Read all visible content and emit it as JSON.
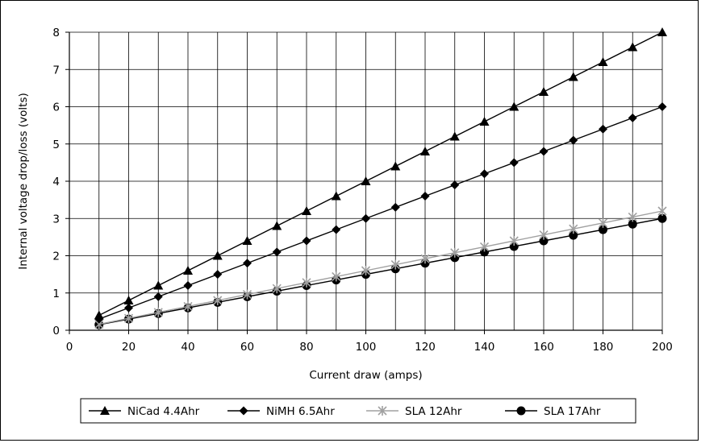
{
  "chart_data": {
    "type": "line",
    "title": "",
    "xlabel": "Current draw (amps)",
    "ylabel": "Internal voltage drop/loss (volts)",
    "xlim": [
      0,
      200
    ],
    "ylim": [
      0,
      8
    ],
    "xticks": [
      0,
      20,
      40,
      60,
      80,
      100,
      120,
      140,
      160,
      180,
      200
    ],
    "yticks": [
      0,
      1,
      2,
      3,
      4,
      5,
      6,
      7,
      8
    ],
    "grid": true,
    "legend_position": "bottom",
    "x": [
      10,
      20,
      30,
      40,
      50,
      60,
      70,
      80,
      90,
      100,
      110,
      120,
      130,
      140,
      150,
      160,
      170,
      180,
      190,
      200
    ],
    "series": [
      {
        "name": "NiCad 4.4Ahr",
        "marker": "triangle",
        "color": "#000000",
        "values": [
          0.4,
          0.8,
          1.2,
          1.6,
          2.0,
          2.4,
          2.8,
          3.2,
          3.6,
          4.0,
          4.4,
          4.8,
          5.2,
          5.6,
          6.0,
          6.4,
          6.8,
          7.2,
          7.6,
          8.0
        ]
      },
      {
        "name": "NiMH 6.5Ahr",
        "marker": "diamond",
        "color": "#000000",
        "values": [
          0.3,
          0.6,
          0.9,
          1.2,
          1.5,
          1.8,
          2.1,
          2.4,
          2.7,
          3.0,
          3.3,
          3.6,
          3.9,
          4.2,
          4.5,
          4.8,
          5.1,
          5.4,
          5.7,
          6.0
        ]
      },
      {
        "name": "SLA 12Ahr",
        "marker": "star",
        "color": "#a0a0a0",
        "values": [
          0.16,
          0.32,
          0.48,
          0.64,
          0.8,
          0.96,
          1.12,
          1.28,
          1.44,
          1.6,
          1.76,
          1.92,
          2.08,
          2.24,
          2.4,
          2.56,
          2.72,
          2.88,
          3.04,
          3.2
        ]
      },
      {
        "name": "SLA 17Ahr",
        "marker": "circle",
        "color": "#000000",
        "values": [
          0.15,
          0.3,
          0.45,
          0.6,
          0.75,
          0.9,
          1.05,
          1.2,
          1.35,
          1.5,
          1.65,
          1.8,
          1.95,
          2.1,
          2.25,
          2.4,
          2.55,
          2.7,
          2.85,
          3.0
        ]
      }
    ]
  }
}
